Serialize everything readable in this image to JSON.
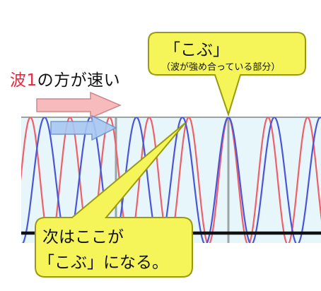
{
  "wave_label": {
    "prefix": "波",
    "number": "1",
    "suffix": "の方が速い"
  },
  "callout_top": {
    "title": "「こぶ」",
    "subtitle": "（波が強め合っている部分）"
  },
  "callout_bottom": {
    "line1": "次はここが",
    "line2": "「こぶ」になる。"
  },
  "colors": {
    "wave_1": "#f06068",
    "wave_2": "#4a55d8",
    "background_band": "#e6f6fa",
    "callout_fill": "#f5f55a",
    "callout_border": "#9a9a10",
    "arrow_1_fill": "#f7b4b6",
    "arrow_2_fill": "#a8c8f2",
    "grid": "#8a9090",
    "baseline": "#111111"
  }
}
